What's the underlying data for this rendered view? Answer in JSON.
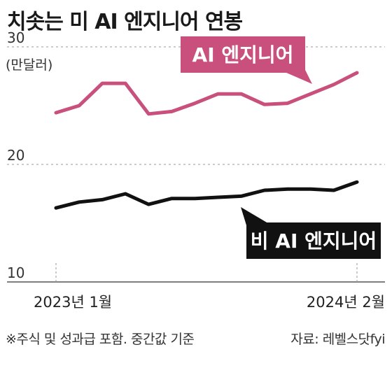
{
  "title": "치솟는 미 AI 엔지니어 연봉",
  "note": "※주식 및 성과급 포함. 중간값 기준",
  "source": "자료: 레벨스닷fyi",
  "colors": {
    "ai": "#c94f7c",
    "nonai": "#111111",
    "grid": "#9a9a9a"
  },
  "chart_data": {
    "type": "line",
    "ylabel": "(만달러)",
    "ylim": [
      10,
      30
    ],
    "yticks": [
      "30",
      "20",
      "10"
    ],
    "x_tick_labels": [
      "2023년 1월",
      "2024년 2월"
    ],
    "x": [
      "2023-01",
      "2023-02",
      "2023-03",
      "2023-04",
      "2023-05",
      "2023-06",
      "2023-07",
      "2023-08",
      "2023-09",
      "2023-10",
      "2023-11",
      "2023-12",
      "2024-01",
      "2024-02"
    ],
    "series": [
      {
        "name": "AI 엔지니어",
        "values": [
          24.4,
          25.0,
          26.9,
          26.9,
          24.3,
          24.5,
          25.2,
          26.0,
          26.0,
          25.1,
          25.2,
          26.0,
          26.8,
          27.8
        ]
      },
      {
        "name": "비 AI 엔지니어",
        "values": [
          16.3,
          16.8,
          17.0,
          17.5,
          16.6,
          17.1,
          17.1,
          17.2,
          17.3,
          17.8,
          17.9,
          17.9,
          17.8,
          18.5
        ]
      }
    ]
  }
}
